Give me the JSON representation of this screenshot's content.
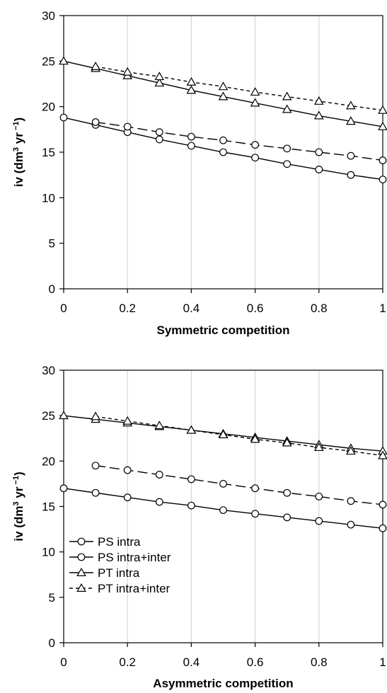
{
  "chart_data": [
    {
      "type": "line",
      "xlabel": "Symmetric competition",
      "ylabel_main": "iv (dm",
      "ylabel_sup1": "3",
      "ylabel_mid": " yr",
      "ylabel_sup2": " −1",
      "ylabel_end": ")",
      "xlim": [
        0,
        1
      ],
      "ylim": [
        0,
        30
      ],
      "x_ticks": [
        "0",
        "0.2",
        "0.4",
        "0.6",
        "0.8",
        "1"
      ],
      "y_ticks": [
        "0",
        "5",
        "10",
        "15",
        "20",
        "25",
        "30"
      ],
      "grid": "vertical",
      "series": [
        {
          "name": "PS intra",
          "marker": "circle",
          "dash": "solid",
          "x": [
            0,
            0.1,
            0.2,
            0.3,
            0.4,
            0.5,
            0.6,
            0.7,
            0.8,
            0.9,
            1
          ],
          "y": [
            18.8,
            18.0,
            17.2,
            16.4,
            15.7,
            15.0,
            14.4,
            13.7,
            13.1,
            12.5,
            12.0
          ]
        },
        {
          "name": "PS intra+inter",
          "marker": "circle",
          "dash": "long",
          "x": [
            0.1,
            0.2,
            0.3,
            0.4,
            0.5,
            0.6,
            0.7,
            0.8,
            0.9,
            1
          ],
          "y": [
            18.3,
            17.8,
            17.2,
            16.7,
            16.3,
            15.8,
            15.4,
            15.0,
            14.6,
            14.1
          ]
        },
        {
          "name": "PT intra",
          "marker": "triangle",
          "dash": "solid",
          "x": [
            0,
            0.1,
            0.2,
            0.3,
            0.4,
            0.5,
            0.6,
            0.7,
            0.8,
            0.9,
            1
          ],
          "y": [
            25.0,
            24.2,
            23.4,
            22.6,
            21.8,
            21.1,
            20.4,
            19.7,
            19.0,
            18.4,
            17.8
          ]
        },
        {
          "name": "PT intra+inter",
          "marker": "triangle",
          "dash": "short",
          "x": [
            0.1,
            0.2,
            0.3,
            0.4,
            0.5,
            0.6,
            0.7,
            0.8,
            0.9,
            1
          ],
          "y": [
            24.4,
            23.8,
            23.3,
            22.7,
            22.2,
            21.6,
            21.1,
            20.6,
            20.1,
            19.6
          ]
        }
      ]
    },
    {
      "type": "line",
      "xlabel": "Asymmetric competition",
      "ylabel_main": "iv (dm",
      "ylabel_sup1": "3",
      "ylabel_mid": " yr",
      "ylabel_sup2": " −1",
      "ylabel_end": ")",
      "xlim": [
        0,
        1
      ],
      "ylim": [
        0,
        30
      ],
      "x_ticks": [
        "0",
        "0.2",
        "0.4",
        "0.6",
        "0.8",
        "1"
      ],
      "y_ticks": [
        "0",
        "5",
        "10",
        "15",
        "20",
        "25",
        "30"
      ],
      "grid": "vertical",
      "legend": {
        "position": "bottom-left",
        "entries": [
          {
            "label": "PS intra",
            "marker": "circle",
            "dash": "solid"
          },
          {
            "label": "PS intra+inter",
            "marker": "circle",
            "dash": "long"
          },
          {
            "label": "PT intra",
            "marker": "triangle",
            "dash": "solid"
          },
          {
            "label": "PT intra+inter",
            "marker": "triangle",
            "dash": "short"
          }
        ]
      },
      "series": [
        {
          "name": "PS intra",
          "marker": "circle",
          "dash": "solid",
          "x": [
            0,
            0.1,
            0.2,
            0.3,
            0.4,
            0.5,
            0.6,
            0.7,
            0.8,
            0.9,
            1
          ],
          "y": [
            17.0,
            16.5,
            16.0,
            15.5,
            15.1,
            14.6,
            14.2,
            13.8,
            13.4,
            13.0,
            12.6
          ]
        },
        {
          "name": "PS intra+inter",
          "marker": "circle",
          "dash": "long",
          "x": [
            0.1,
            0.2,
            0.3,
            0.4,
            0.5,
            0.6,
            0.7,
            0.8,
            0.9,
            1
          ],
          "y": [
            19.5,
            19.0,
            18.5,
            18.0,
            17.5,
            17.0,
            16.5,
            16.1,
            15.6,
            15.2
          ]
        },
        {
          "name": "PT intra",
          "marker": "triangle",
          "dash": "solid",
          "x": [
            0,
            0.1,
            0.2,
            0.3,
            0.4,
            0.5,
            0.6,
            0.7,
            0.8,
            0.9,
            1
          ],
          "y": [
            25.0,
            24.6,
            24.2,
            23.8,
            23.4,
            23.0,
            22.6,
            22.2,
            21.8,
            21.4,
            21.1
          ]
        },
        {
          "name": "PT intra+inter",
          "marker": "triangle",
          "dash": "short",
          "x": [
            0.1,
            0.2,
            0.3,
            0.4,
            0.5,
            0.6,
            0.7,
            0.8,
            0.9,
            1
          ],
          "y": [
            24.9,
            24.4,
            23.9,
            23.4,
            22.9,
            22.4,
            22.0,
            21.5,
            21.1,
            20.6
          ]
        }
      ]
    }
  ]
}
